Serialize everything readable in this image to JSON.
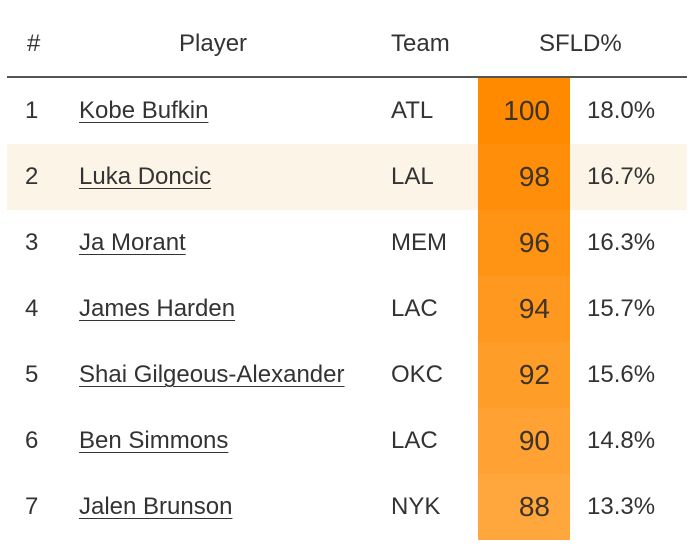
{
  "header": {
    "rank": "#",
    "player": "Player",
    "team": "Team",
    "sfld": "SFLD%"
  },
  "colors": {
    "score_max": "#ff8a00",
    "score_min": "#ffa63d",
    "highlight_row": "#fcf4e6",
    "header_rule": "#555555"
  },
  "rows": [
    {
      "rank": "1",
      "player": "Kobe Bufkin",
      "team": "ATL",
      "score": "100",
      "pct": "18.0%"
    },
    {
      "rank": "2",
      "player": "Luka Doncic",
      "team": "LAL",
      "score": "98",
      "pct": "16.7%"
    },
    {
      "rank": "3",
      "player": "Ja Morant",
      "team": "MEM",
      "score": "96",
      "pct": "16.3%"
    },
    {
      "rank": "4",
      "player": "James Harden",
      "team": "LAC",
      "score": "94",
      "pct": "15.7%"
    },
    {
      "rank": "5",
      "player": "Shai Gilgeous-Alexander",
      "team": "OKC",
      "score": "92",
      "pct": "15.6%"
    },
    {
      "rank": "6",
      "player": "Ben Simmons",
      "team": "LAC",
      "score": "90",
      "pct": "14.8%"
    },
    {
      "rank": "7",
      "player": "Jalen Brunson",
      "team": "NYK",
      "score": "88",
      "pct": "13.3%"
    }
  ],
  "highlighted_row": 1
}
